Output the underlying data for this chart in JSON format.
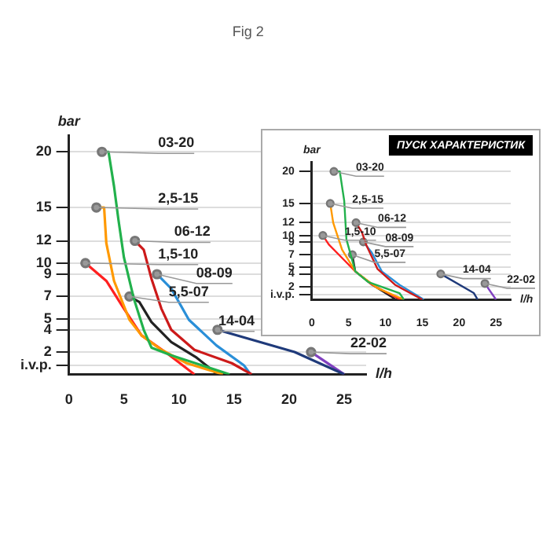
{
  "chart_data": [
    {
      "type": "line",
      "annotations": [
        "Fig 2"
      ],
      "xlabel": "l/h",
      "ylabel": "bar",
      "xlim": [
        0,
        27
      ],
      "ylim": [
        0,
        21.5
      ],
      "xticks": [
        0,
        5,
        10,
        15,
        20,
        25
      ],
      "yticks": [
        {
          "value": 0.8,
          "label": "i.v.p."
        },
        2,
        4,
        5,
        7,
        9,
        10,
        12,
        15,
        20
      ],
      "grid": "y",
      "series": [
        {
          "name": "03-20",
          "color": "#22b14c",
          "x": [
            3,
            3.6,
            4.1,
            4.5,
            5,
            5.9,
            6.8,
            7.5,
            9.3,
            14.6
          ],
          "values": [
            20,
            20,
            16.9,
            13.9,
            10.5,
            6.8,
            4,
            2.4,
            1.7,
            0
          ]
        },
        {
          "name": "2,5-15",
          "color": "#ff9900",
          "x": [
            2.5,
            3.2,
            3.4,
            4.1,
            5.5,
            6.6,
            8.4,
            10.7,
            14
          ],
          "values": [
            15,
            15,
            11.8,
            8.4,
            4.9,
            3.5,
            2.2,
            1,
            0
          ]
        },
        {
          "name": "06-12",
          "color": "#cc1a1a",
          "x": [
            6,
            6.8,
            7.5,
            8.4,
            9.3,
            11.4,
            14.8,
            16.6
          ],
          "values": [
            12,
            11.2,
            8.6,
            5.9,
            4,
            2.2,
            1,
            0
          ]
        },
        {
          "name": "1,5-10",
          "color": "#ff2020",
          "x": [
            1.5,
            3.4,
            5,
            6.6,
            8.9,
            11.4
          ],
          "values": [
            10,
            8.4,
            5.9,
            3.5,
            1.9,
            0
          ]
        },
        {
          "name": "08-09",
          "color": "#2a8fd8",
          "x": [
            8,
            9.3,
            10.9,
            13.4,
            15.9,
            16.5
          ],
          "values": [
            9,
            7.7,
            4.9,
            2.6,
            0.8,
            0
          ]
        },
        {
          "name": "5,5-07",
          "color": "#222222",
          "x": [
            5.5,
            6.4,
            7.5,
            9.3,
            11.6,
            13.5
          ],
          "values": [
            7,
            6.5,
            4.7,
            2.9,
            1.5,
            0
          ]
        },
        {
          "name": "14-04",
          "color": "#1f3a7a",
          "x": [
            13.5,
            20.5,
            25
          ],
          "values": [
            4,
            2,
            0
          ]
        },
        {
          "name": "22-02",
          "color": "#8040c0",
          "x": [
            22,
            25
          ],
          "values": [
            2,
            0
          ]
        }
      ]
    },
    {
      "type": "line",
      "title": "ПУСК ХАРАКТЕРИСТИК",
      "xlabel": "l/h",
      "ylabel": "bar",
      "xlim": [
        0,
        27
      ],
      "ylim": [
        0,
        21.5
      ],
      "xticks": [
        0,
        5,
        10,
        15,
        20,
        25
      ],
      "yticks": [
        {
          "value": 0.8,
          "label": "i.v.p."
        },
        2,
        4,
        5,
        7,
        9,
        10,
        12,
        15,
        20
      ],
      "grid": "y",
      "series": [
        {
          "name": "03-20",
          "color": "#22b14c",
          "x": [
            3,
            3.8,
            4.4,
            4.7,
            5.9,
            7.7,
            11.9,
            12.5
          ],
          "values": [
            20,
            20,
            15.4,
            9.4,
            4.4,
            2.7,
            1,
            0
          ]
        },
        {
          "name": "2,5-15",
          "color": "#ff9900",
          "x": [
            2.5,
            2.9,
            4.1,
            5.9,
            8.9,
            12.5
          ],
          "values": [
            15,
            12,
            7.8,
            4.4,
            1.8,
            0
          ]
        },
        {
          "name": "06-12",
          "color": "#cc1a1a",
          "x": [
            6,
            6.8,
            7.4,
            8.9,
            11.3,
            15
          ],
          "values": [
            12,
            10.5,
            8.5,
            4.8,
            2.3,
            0
          ]
        },
        {
          "name": "1,5-10",
          "color": "#ff2020",
          "x": [
            1.5,
            2.3,
            4.1,
            5.9,
            8.2,
            12
          ],
          "values": [
            10,
            8.6,
            6.5,
            4.4,
            2.3,
            0
          ]
        },
        {
          "name": "08-09",
          "color": "#2a8fd8",
          "x": [
            7,
            8.1,
            9.5,
            11.9,
            15.2
          ],
          "values": [
            9,
            7.4,
            4.4,
            2.3,
            0
          ]
        },
        {
          "name": "5,5-07",
          "color": "#222222",
          "x": [
            5.5,
            5.9,
            8.2,
            11.4
          ],
          "values": [
            7,
            4.4,
            2.3,
            0
          ]
        },
        {
          "name": "14-04",
          "color": "#1f3a7a",
          "x": [
            17.5,
            22,
            22.5
          ],
          "values": [
            4,
            1,
            0
          ]
        },
        {
          "name": "22-02",
          "color": "#8040c0",
          "x": [
            23.5,
            25
          ],
          "values": [
            2.5,
            0
          ]
        }
      ]
    }
  ]
}
